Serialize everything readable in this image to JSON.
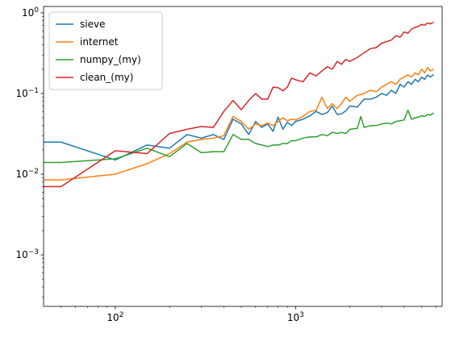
{
  "chart_data": {
    "type": "line",
    "title": "",
    "xlabel": "",
    "ylabel": "",
    "xscale": "log",
    "yscale": "log",
    "xlim": [
      40,
      6500
    ],
    "ylim": [
      0.00023,
      1.2
    ],
    "grid": false,
    "legend_position": "top-left",
    "x_ticks": [
      {
        "value": 100,
        "base": "10",
        "exp": "2"
      },
      {
        "value": 1000,
        "base": "10",
        "exp": "3"
      }
    ],
    "y_ticks": [
      {
        "value": 0.001,
        "base": "10",
        "exp": "−3"
      },
      {
        "value": 0.01,
        "base": "10",
        "exp": "−2"
      },
      {
        "value": 0.1,
        "base": "10",
        "exp": "−1"
      },
      {
        "value": 1,
        "base": "10",
        "exp": "0"
      }
    ],
    "series": [
      {
        "name": "sieve",
        "color": "#1f77b4",
        "points": [
          [
            40,
            0.025
          ],
          [
            50,
            0.025
          ],
          [
            100,
            0.015
          ],
          [
            150,
            0.023
          ],
          [
            200,
            0.021
          ],
          [
            250,
            0.031
          ],
          [
            300,
            0.028
          ],
          [
            350,
            0.031
          ],
          [
            400,
            0.027
          ],
          [
            450,
            0.048
          ],
          [
            500,
            0.042
          ],
          [
            550,
            0.031
          ],
          [
            600,
            0.045
          ],
          [
            650,
            0.038
          ],
          [
            700,
            0.042
          ],
          [
            750,
            0.034
          ],
          [
            800,
            0.051
          ],
          [
            850,
            0.036
          ],
          [
            900,
            0.044
          ],
          [
            950,
            0.04
          ],
          [
            1000,
            0.045
          ],
          [
            1100,
            0.048
          ],
          [
            1200,
            0.053
          ],
          [
            1300,
            0.06
          ],
          [
            1400,
            0.055
          ],
          [
            1500,
            0.058
          ],
          [
            1600,
            0.07
          ],
          [
            1700,
            0.055
          ],
          [
            1800,
            0.056
          ],
          [
            1900,
            0.061
          ],
          [
            2000,
            0.07
          ],
          [
            2200,
            0.068
          ],
          [
            2400,
            0.085
          ],
          [
            2600,
            0.085
          ],
          [
            2800,
            0.09
          ],
          [
            3000,
            0.1
          ],
          [
            3200,
            0.095
          ],
          [
            3400,
            0.11
          ],
          [
            3600,
            0.1
          ],
          [
            3800,
            0.13
          ],
          [
            4000,
            0.12
          ],
          [
            4200,
            0.14
          ],
          [
            4400,
            0.13
          ],
          [
            4600,
            0.15
          ],
          [
            4800,
            0.14
          ],
          [
            5000,
            0.16
          ],
          [
            5200,
            0.15
          ],
          [
            5400,
            0.17
          ],
          [
            5600,
            0.16
          ],
          [
            5800,
            0.17
          ]
        ]
      },
      {
        "name": "internet",
        "color": "#ff7f0e",
        "points": [
          [
            40,
            0.0085
          ],
          [
            50,
            0.0085
          ],
          [
            100,
            0.01
          ],
          [
            150,
            0.0135
          ],
          [
            200,
            0.018
          ],
          [
            250,
            0.025
          ],
          [
            300,
            0.027
          ],
          [
            350,
            0.028
          ],
          [
            400,
            0.03
          ],
          [
            450,
            0.052
          ],
          [
            500,
            0.045
          ],
          [
            550,
            0.036
          ],
          [
            600,
            0.042
          ],
          [
            650,
            0.04
          ],
          [
            700,
            0.043
          ],
          [
            750,
            0.04
          ],
          [
            800,
            0.045
          ],
          [
            850,
            0.05
          ],
          [
            900,
            0.046
          ],
          [
            950,
            0.048
          ],
          [
            1000,
            0.047
          ],
          [
            1100,
            0.052
          ],
          [
            1200,
            0.06
          ],
          [
            1300,
            0.062
          ],
          [
            1400,
            0.09
          ],
          [
            1500,
            0.065
          ],
          [
            1600,
            0.075
          ],
          [
            1700,
            0.065
          ],
          [
            1800,
            0.075
          ],
          [
            1900,
            0.09
          ],
          [
            2000,
            0.08
          ],
          [
            2200,
            0.095
          ],
          [
            2400,
            0.1
          ],
          [
            2600,
            0.11
          ],
          [
            2800,
            0.105
          ],
          [
            3000,
            0.12
          ],
          [
            3200,
            0.13
          ],
          [
            3400,
            0.14
          ],
          [
            3600,
            0.13
          ],
          [
            3800,
            0.15
          ],
          [
            4000,
            0.16
          ],
          [
            4200,
            0.17
          ],
          [
            4400,
            0.16
          ],
          [
            4600,
            0.18
          ],
          [
            4800,
            0.17
          ],
          [
            5000,
            0.2
          ],
          [
            5200,
            0.18
          ],
          [
            5400,
            0.21
          ],
          [
            5600,
            0.19
          ],
          [
            5800,
            0.2
          ]
        ]
      },
      {
        "name": "numpy_(my)",
        "color": "#2ca02c",
        "points": [
          [
            40,
            0.014
          ],
          [
            50,
            0.014
          ],
          [
            100,
            0.0155
          ],
          [
            150,
            0.021
          ],
          [
            200,
            0.0165
          ],
          [
            250,
            0.024
          ],
          [
            300,
            0.0185
          ],
          [
            350,
            0.019
          ],
          [
            400,
            0.019
          ],
          [
            450,
            0.031
          ],
          [
            500,
            0.027
          ],
          [
            550,
            0.027
          ],
          [
            600,
            0.024
          ],
          [
            650,
            0.023
          ],
          [
            700,
            0.022
          ],
          [
            750,
            0.023
          ],
          [
            800,
            0.023
          ],
          [
            850,
            0.024
          ],
          [
            900,
            0.024
          ],
          [
            950,
            0.026
          ],
          [
            1000,
            0.026
          ],
          [
            1100,
            0.028
          ],
          [
            1200,
            0.029
          ],
          [
            1300,
            0.029
          ],
          [
            1400,
            0.031
          ],
          [
            1500,
            0.03
          ],
          [
            1600,
            0.033
          ],
          [
            1700,
            0.032
          ],
          [
            1800,
            0.033
          ],
          [
            1900,
            0.032
          ],
          [
            2000,
            0.036
          ],
          [
            2200,
            0.037
          ],
          [
            2300,
            0.052
          ],
          [
            2400,
            0.038
          ],
          [
            2600,
            0.04
          ],
          [
            2800,
            0.04
          ],
          [
            3000,
            0.042
          ],
          [
            3200,
            0.043
          ],
          [
            3400,
            0.042
          ],
          [
            3600,
            0.045
          ],
          [
            3800,
            0.046
          ],
          [
            4000,
            0.047
          ],
          [
            4200,
            0.062
          ],
          [
            4400,
            0.048
          ],
          [
            4600,
            0.05
          ],
          [
            4800,
            0.051
          ],
          [
            5000,
            0.053
          ],
          [
            5200,
            0.052
          ],
          [
            5400,
            0.055
          ],
          [
            5600,
            0.054
          ],
          [
            5800,
            0.057
          ]
        ]
      },
      {
        "name": "clean_(my)",
        "color": "#d62728",
        "points": [
          [
            40,
            0.007
          ],
          [
            50,
            0.007
          ],
          [
            100,
            0.0195
          ],
          [
            150,
            0.018
          ],
          [
            200,
            0.032
          ],
          [
            250,
            0.036
          ],
          [
            300,
            0.039
          ],
          [
            350,
            0.038
          ],
          [
            400,
            0.06
          ],
          [
            450,
            0.082
          ],
          [
            500,
            0.063
          ],
          [
            550,
            0.082
          ],
          [
            600,
            0.1
          ],
          [
            650,
            0.085
          ],
          [
            700,
            0.085
          ],
          [
            750,
            0.12
          ],
          [
            800,
            0.118
          ],
          [
            850,
            0.108
          ],
          [
            900,
            0.12
          ],
          [
            950,
            0.155
          ],
          [
            1000,
            0.148
          ],
          [
            1100,
            0.14
          ],
          [
            1200,
            0.18
          ],
          [
            1300,
            0.165
          ],
          [
            1400,
            0.19
          ],
          [
            1500,
            0.215
          ],
          [
            1600,
            0.2
          ],
          [
            1700,
            0.25
          ],
          [
            1800,
            0.23
          ],
          [
            1900,
            0.265
          ],
          [
            2000,
            0.25
          ],
          [
            2200,
            0.28
          ],
          [
            2400,
            0.32
          ],
          [
            2600,
            0.36
          ],
          [
            2800,
            0.37
          ],
          [
            3000,
            0.42
          ],
          [
            3200,
            0.44
          ],
          [
            3400,
            0.46
          ],
          [
            3600,
            0.52
          ],
          [
            3800,
            0.5
          ],
          [
            4000,
            0.58
          ],
          [
            4200,
            0.56
          ],
          [
            4400,
            0.63
          ],
          [
            4600,
            0.66
          ],
          [
            4800,
            0.68
          ],
          [
            5000,
            0.72
          ],
          [
            5200,
            0.7
          ],
          [
            5400,
            0.75
          ],
          [
            5600,
            0.73
          ],
          [
            5800,
            0.76
          ]
        ]
      }
    ]
  }
}
